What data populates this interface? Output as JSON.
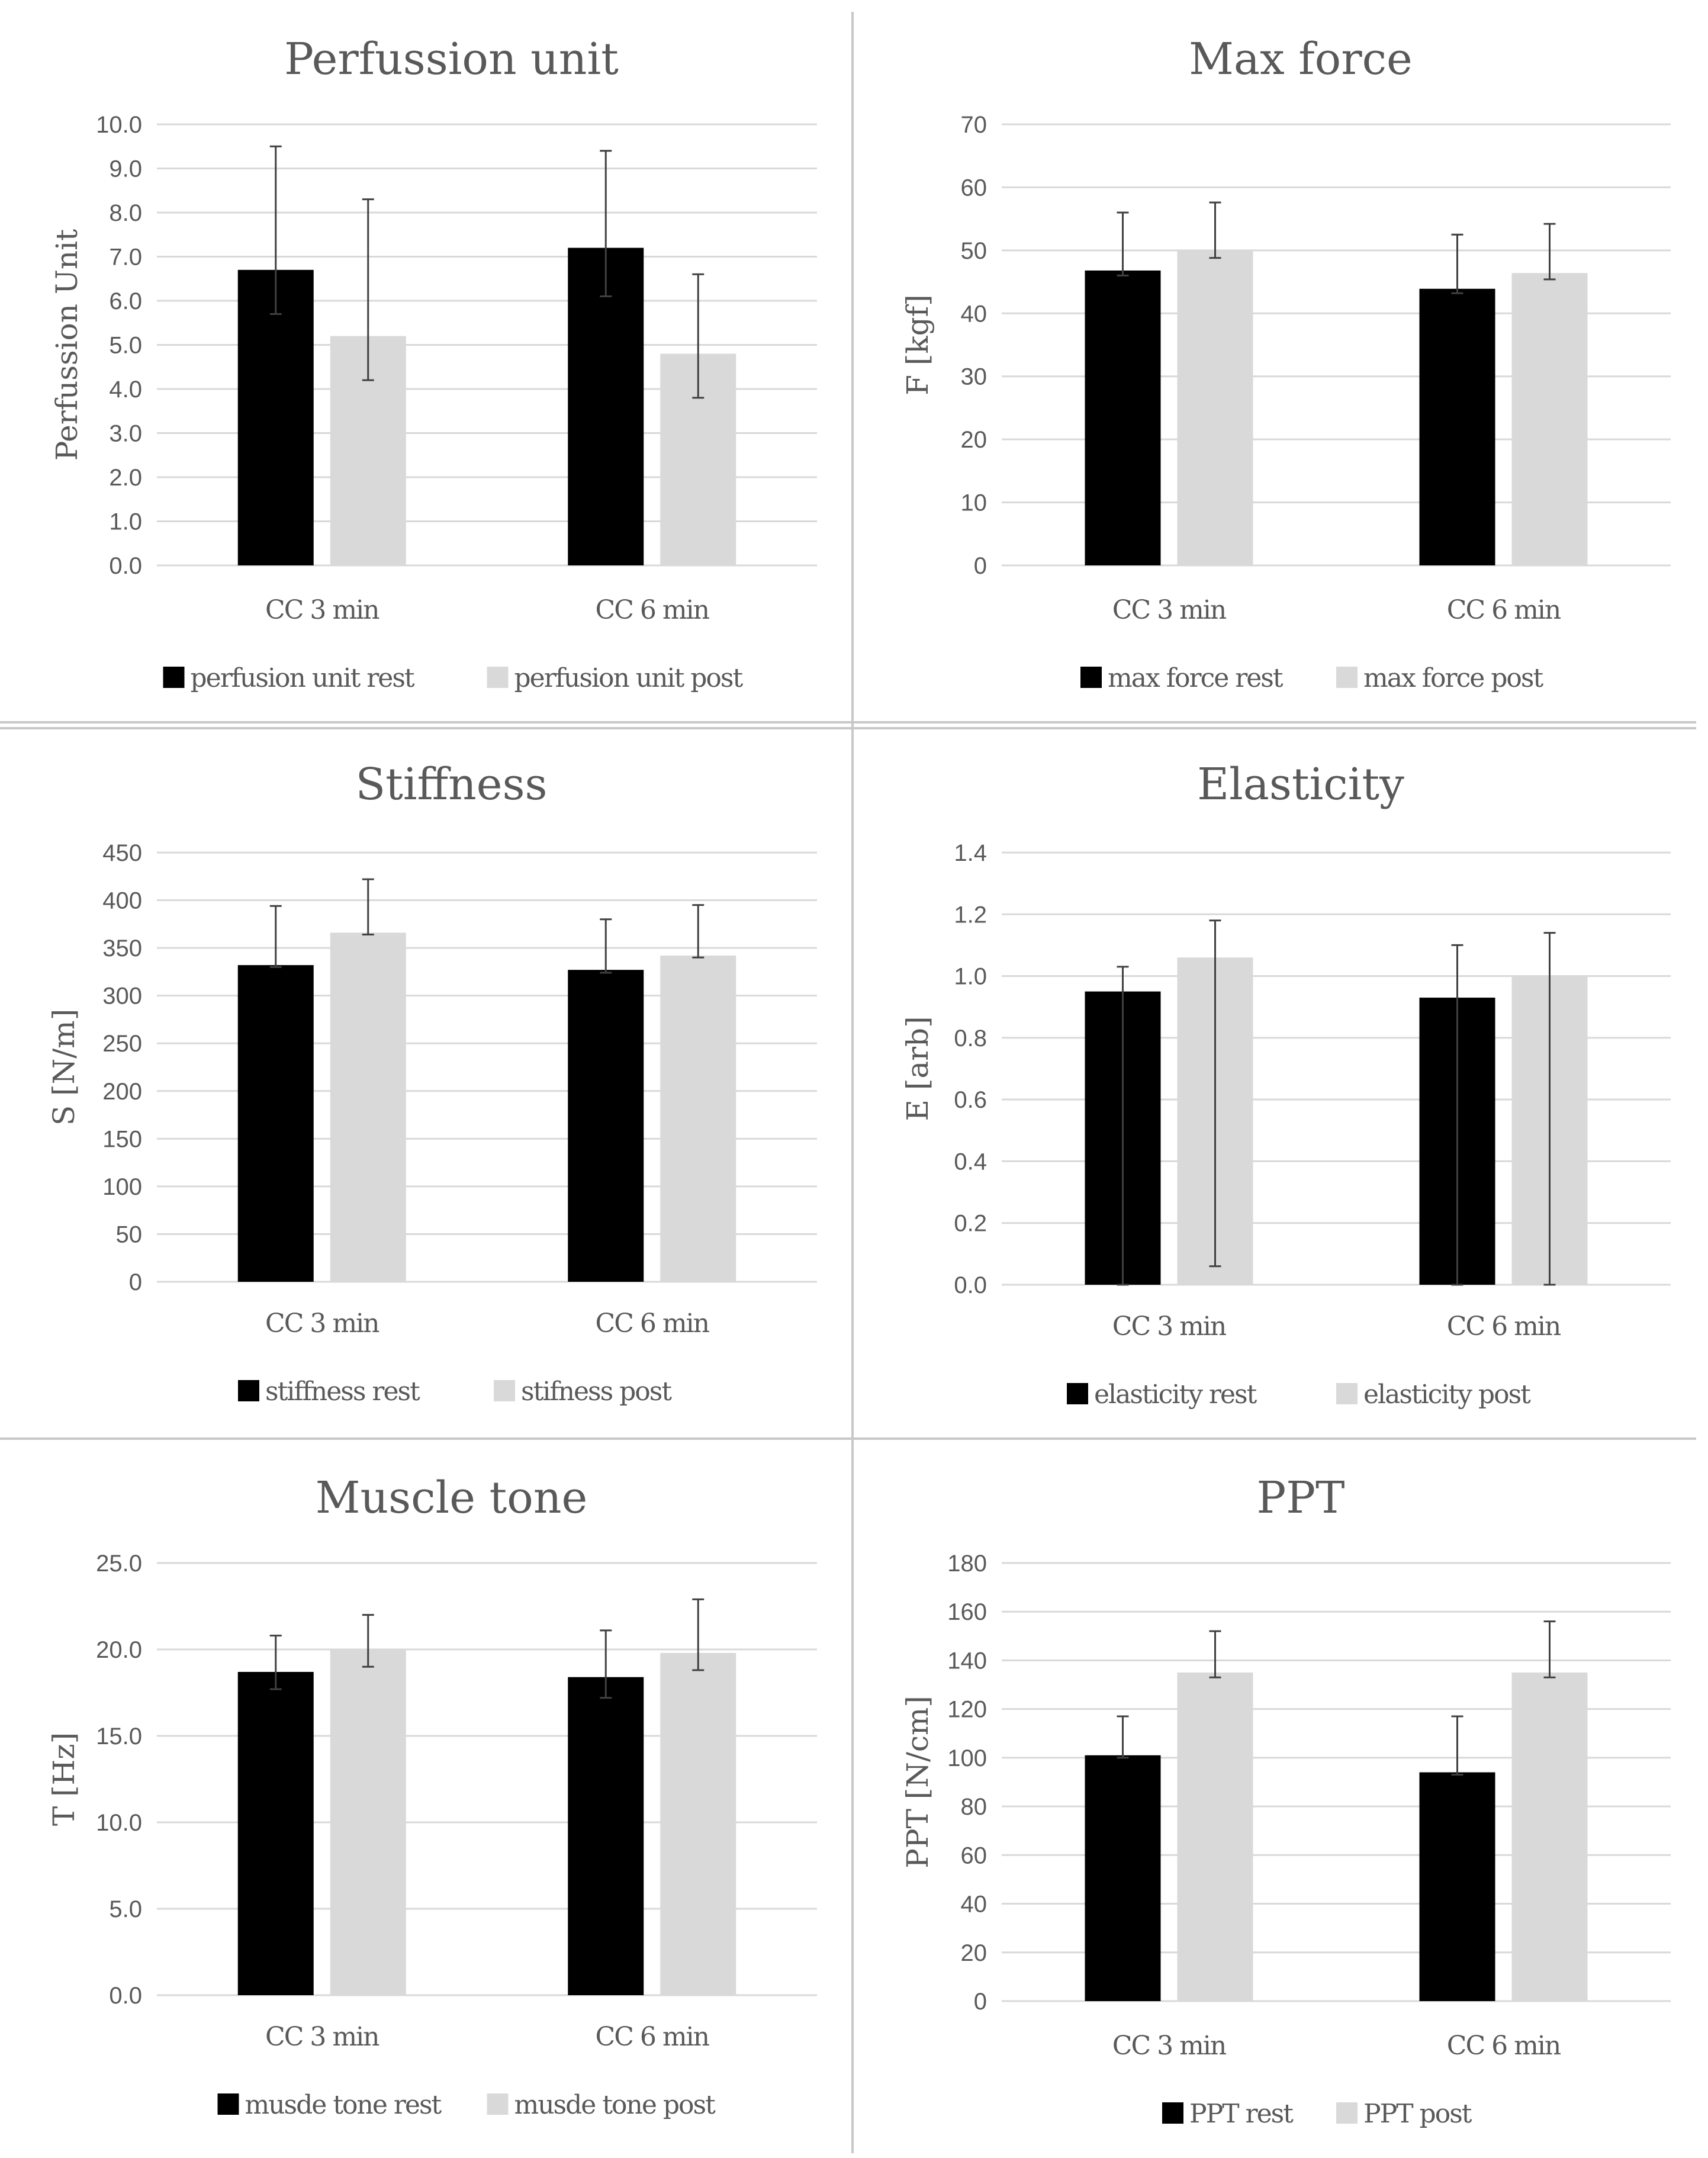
{
  "figure": {
    "colors": {
      "rest": "#000000",
      "post": "#d9d9d9",
      "grid": "#d9d9d9",
      "text": "#595959",
      "error_bar": "#404040"
    }
  },
  "chart_data": [
    {
      "type": "bar",
      "title": "Perfussion unit",
      "ylabel": "Perfussion Unit",
      "xlabel": "",
      "categories": [
        "CC 3 min",
        "CC 6 min"
      ],
      "ylim": [
        0,
        10
      ],
      "yticks": [
        "0.0",
        "1.0",
        "2.0",
        "3.0",
        "4.0",
        "5.0",
        "6.0",
        "7.0",
        "8.0",
        "9.0",
        "10.0"
      ],
      "series": [
        {
          "name": "perfusion unit rest",
          "values": [
            6.7,
            7.2
          ],
          "err_low": [
            5.7,
            6.1
          ],
          "err_high": [
            9.5,
            9.4
          ]
        },
        {
          "name": "perfusion unit post",
          "values": [
            5.2,
            4.8
          ],
          "err_low": [
            4.2,
            3.8
          ],
          "err_high": [
            8.3,
            6.6
          ]
        }
      ]
    },
    {
      "type": "bar",
      "title": "Max force",
      "ylabel": "F [kgf]",
      "xlabel": "",
      "categories": [
        "CC 3 min",
        "CC 6 min"
      ],
      "ylim": [
        0,
        70
      ],
      "yticks": [
        "0",
        "10",
        "20",
        "30",
        "40",
        "50",
        "60",
        "70"
      ],
      "series": [
        {
          "name": "max force rest",
          "values": [
            46.8,
            43.9
          ],
          "err_low": [
            46.0,
            43.2
          ],
          "err_high": [
            56.0,
            52.5
          ]
        },
        {
          "name": "max force post",
          "values": [
            50.0,
            46.4
          ],
          "err_low": [
            48.8,
            45.4
          ],
          "err_high": [
            57.6,
            54.2
          ]
        }
      ]
    },
    {
      "type": "bar",
      "title": "Stiffness",
      "ylabel": "S [N/m]",
      "xlabel": "",
      "categories": [
        "CC 3 min",
        "CC 6 min"
      ],
      "ylim": [
        0,
        450
      ],
      "yticks": [
        "0",
        "50",
        "100",
        "150",
        "200",
        "250",
        "300",
        "350",
        "400",
        "450"
      ],
      "series": [
        {
          "name": "stiffness rest",
          "values": [
            332,
            327
          ],
          "err_low": [
            330,
            324
          ],
          "err_high": [
            394,
            380
          ]
        },
        {
          "name": "stifness post",
          "values": [
            366,
            342
          ],
          "err_low": [
            364,
            340
          ],
          "err_high": [
            422,
            395
          ]
        }
      ]
    },
    {
      "type": "bar",
      "title": "Elasticity",
      "ylabel": "E [arb]",
      "xlabel": "",
      "categories": [
        "CC 3 min",
        "CC 6 min"
      ],
      "ylim": [
        0,
        1.4
      ],
      "yticks": [
        "0.0",
        "0.2",
        "0.4",
        "0.6",
        "0.8",
        "1.0",
        "1.2",
        "1.4"
      ],
      "series": [
        {
          "name": "elasticity rest",
          "values": [
            0.95,
            0.93
          ],
          "err_low": [
            0.0,
            0.0
          ],
          "err_high": [
            1.03,
            1.1
          ]
        },
        {
          "name": "elasticity post",
          "values": [
            1.06,
            1.0
          ],
          "err_low": [
            0.06,
            0.0
          ],
          "err_high": [
            1.18,
            1.14
          ]
        }
      ]
    },
    {
      "type": "bar",
      "title": "Muscle tone",
      "ylabel": "T [Hz]",
      "xlabel": "",
      "categories": [
        "CC 3 min",
        "CC 6 min"
      ],
      "ylim": [
        0,
        25
      ],
      "yticks": [
        "0.0",
        "5.0",
        "10.0",
        "15.0",
        "20.0",
        "25.0"
      ],
      "series": [
        {
          "name": "musde tone rest",
          "values": [
            18.7,
            18.4
          ],
          "err_low": [
            17.7,
            17.2
          ],
          "err_high": [
            20.8,
            21.1
          ]
        },
        {
          "name": "musde tone post",
          "values": [
            20.0,
            19.8
          ],
          "err_low": [
            19.0,
            18.8
          ],
          "err_high": [
            22.0,
            22.9
          ]
        }
      ]
    },
    {
      "type": "bar",
      "title": "PPT",
      "ylabel": "PPT [N/cm]",
      "xlabel": "",
      "categories": [
        "CC 3 min",
        "CC 6 min"
      ],
      "ylim": [
        0,
        180
      ],
      "yticks": [
        "0",
        "20",
        "40",
        "60",
        "80",
        "100",
        "120",
        "140",
        "160",
        "180"
      ],
      "series": [
        {
          "name": "PPT rest",
          "values": [
            101,
            94
          ],
          "err_low": [
            100,
            93
          ],
          "err_high": [
            117,
            117
          ]
        },
        {
          "name": "PPT post",
          "values": [
            135,
            135
          ],
          "err_low": [
            133,
            133
          ],
          "err_high": [
            152,
            156
          ]
        }
      ]
    }
  ]
}
